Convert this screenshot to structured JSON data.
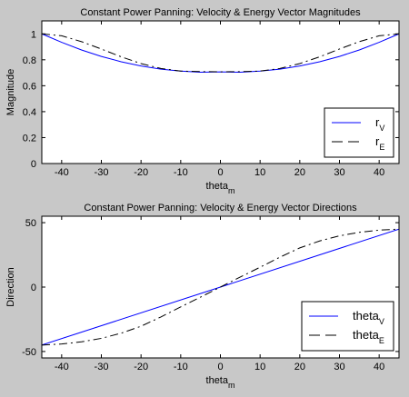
{
  "chart_data": [
    {
      "type": "line",
      "title": "Constant Power Panning: Velocity & Energy Vector Magnitudes",
      "xlabel": {
        "main": "theta",
        "sub": "m"
      },
      "ylabel": "Magnitude",
      "xlim": [
        -45,
        45
      ],
      "ylim": [
        0,
        1.1
      ],
      "xticks": [
        -40,
        -30,
        -20,
        -10,
        0,
        10,
        20,
        30,
        40
      ],
      "yticks": [
        0,
        0.2,
        0.4,
        0.6,
        0.8,
        1
      ],
      "ytick_labels": [
        "0",
        "0.2",
        "0.4",
        "0.6",
        "0.8",
        "1"
      ],
      "grid": false,
      "legend_position": "bottom-right",
      "series": [
        {
          "name": {
            "main": "r",
            "sub": "V"
          },
          "color": "#0000ff",
          "dash": "solid",
          "x": [
            -45,
            -40,
            -35,
            -30,
            -25,
            -20,
            -15,
            -10,
            -5,
            0,
            5,
            10,
            15,
            20,
            25,
            30,
            35,
            40,
            45
          ],
          "y": [
            1.0,
            0.935,
            0.876,
            0.826,
            0.785,
            0.752,
            0.728,
            0.713,
            0.704,
            0.707,
            0.704,
            0.713,
            0.728,
            0.752,
            0.785,
            0.826,
            0.876,
            0.935,
            1.0
          ]
        },
        {
          "name": {
            "main": "r",
            "sub": "E"
          },
          "color": "#000000",
          "dash": "dashdot",
          "x": [
            -45,
            -40,
            -35,
            -30,
            -25,
            -20,
            -15,
            -10,
            -5,
            0,
            5,
            10,
            15,
            20,
            25,
            30,
            35,
            40,
            45
          ],
          "y": [
            1.0,
            0.985,
            0.94,
            0.883,
            0.823,
            0.771,
            0.733,
            0.713,
            0.709,
            0.707,
            0.709,
            0.713,
            0.733,
            0.771,
            0.823,
            0.883,
            0.94,
            0.985,
            1.0
          ]
        }
      ]
    },
    {
      "type": "line",
      "title": "Constant Power Panning: Velocity & Energy Vector Directions",
      "xlabel": {
        "main": "theta",
        "sub": "m"
      },
      "ylabel": "Direction",
      "xlim": [
        -45,
        45
      ],
      "ylim": [
        -55,
        55
      ],
      "xticks": [
        -40,
        -30,
        -20,
        -10,
        0,
        10,
        20,
        30,
        40
      ],
      "yticks": [
        -50,
        0,
        50
      ],
      "ytick_labels": [
        "-50",
        "0",
        "50"
      ],
      "grid": false,
      "legend_position": "bottom-right",
      "series": [
        {
          "name": {
            "main": "theta",
            "sub": "V"
          },
          "color": "#0000ff",
          "dash": "solid",
          "x": [
            -45,
            45
          ],
          "y": [
            -45,
            45
          ]
        },
        {
          "name": {
            "main": "theta",
            "sub": "E"
          },
          "color": "#000000",
          "dash": "dashdot",
          "x": [
            -45,
            -40,
            -35,
            -30,
            -25,
            -20,
            -15,
            -10,
            -5,
            0,
            5,
            10,
            15,
            20,
            25,
            30,
            35,
            40,
            45
          ],
          "y": [
            -45,
            -44.2,
            -42.5,
            -39.8,
            -35.8,
            -30.4,
            -23.2,
            -15.4,
            -7.8,
            0,
            7.8,
            15.4,
            23.2,
            30.4,
            35.8,
            39.8,
            42.5,
            44.2,
            45
          ]
        }
      ]
    }
  ]
}
